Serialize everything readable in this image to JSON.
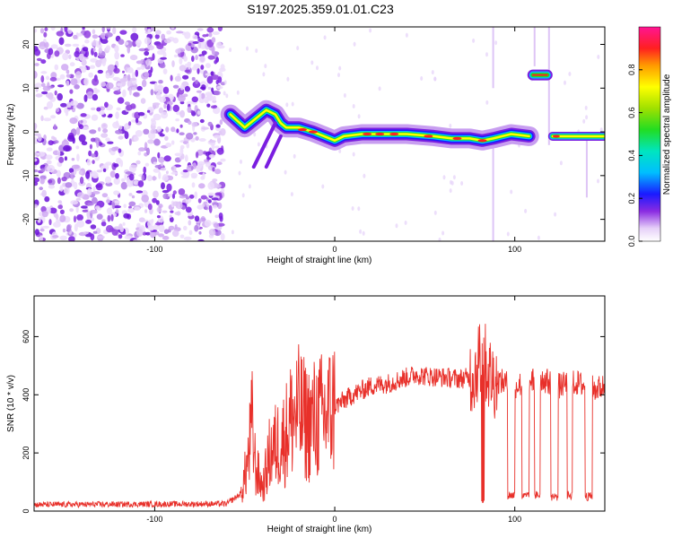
{
  "title": "S197.2025.359.01.01.C23",
  "colors": {
    "snr_line": "#e8302a",
    "axis": "#000000",
    "background": "#ffffff"
  },
  "chart_data": [
    {
      "type": "heatmap",
      "name": "spectrogram",
      "xlabel": "Height of straight line (km)",
      "ylabel": "Frequency (Hz)",
      "xlim": [
        -167,
        150
      ],
      "ylim": [
        -25,
        24
      ],
      "xticks": [
        -100,
        0,
        100
      ],
      "yticks": [
        -20,
        -10,
        0,
        10,
        20
      ],
      "noise_region_x": [
        -167,
        -62
      ],
      "ridge": {
        "description_points_x": [
          -58,
          -50,
          -44,
          -38,
          -33,
          -30,
          -27,
          -20,
          -12,
          -6,
          0,
          5,
          15,
          25,
          40,
          55,
          65,
          75,
          82,
          88,
          93,
          98,
          108
        ],
        "description_points_y": [
          4,
          1,
          3,
          5,
          4,
          2,
          1,
          1,
          0,
          -1,
          -2,
          -1,
          -0.5,
          -0.5,
          -0.5,
          -1,
          -1.5,
          -1.5,
          -2,
          -1.5,
          -1,
          -0.5,
          -1
        ]
      },
      "upper_patch": {
        "x": [
          110,
          118
        ],
        "y": 13
      },
      "right_segment": {
        "x": [
          121,
          150
        ],
        "y": -1
      },
      "colorbar": {
        "label": "Normalized spectral amplitude",
        "range": [
          0,
          1
        ],
        "ticks": [
          "0.0",
          "0.2",
          "0.4",
          "0.6",
          "0.8"
        ],
        "tick_values": [
          0,
          0.2,
          0.4,
          0.6,
          0.8
        ]
      }
    },
    {
      "type": "line",
      "name": "snr",
      "xlabel": "Height of straight line (km)",
      "ylabel": "SNR (10 * v/v)",
      "xlim": [
        -167,
        150
      ],
      "ylim": [
        0,
        740
      ],
      "xticks": [
        -100,
        0,
        100
      ],
      "yticks": [
        0,
        200,
        400,
        600
      ],
      "envelope_x": [
        -167,
        -60,
        -52,
        -48,
        -46,
        -44,
        -40,
        -36,
        -32,
        -28,
        -24,
        -20,
        -15,
        -10,
        -5,
        0,
        10,
        20,
        30,
        40,
        45,
        50,
        60,
        70,
        75,
        78,
        80,
        82,
        84,
        86,
        88,
        90,
        95,
        100,
        105,
        110,
        115,
        120,
        125,
        130,
        135,
        140,
        145,
        150
      ],
      "envelope_y": [
        22,
        25,
        60,
        180,
        300,
        150,
        80,
        200,
        230,
        250,
        320,
        340,
        300,
        320,
        330,
        360,
        400,
        430,
        440,
        460,
        470,
        465,
        460,
        455,
        460,
        480,
        520,
        560,
        500,
        470,
        455,
        450,
        440,
        430,
        440,
        450,
        455,
        440,
        430,
        440,
        440,
        430,
        420,
        430
      ],
      "dropouts": [
        {
          "x": [
            96,
            100
          ],
          "y": 55
        },
        {
          "x": [
            104,
            108
          ],
          "y": 50
        },
        {
          "x": [
            111,
            114
          ],
          "y": 55
        },
        {
          "x": [
            120,
            124
          ],
          "y": 50
        },
        {
          "x": [
            129,
            132
          ],
          "y": 55
        },
        {
          "x": [
            139,
            143
          ],
          "y": 50
        }
      ]
    }
  ]
}
